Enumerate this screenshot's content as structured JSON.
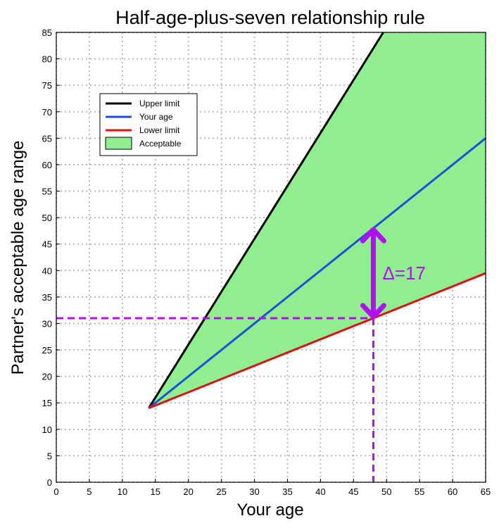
{
  "chart_data": {
    "type": "area",
    "title": "Half-age-plus-seven relationship rule",
    "xlabel": "Your age",
    "ylabel": "Partner's acceptable age range",
    "xlim": [
      0,
      65
    ],
    "ylim": [
      0,
      85
    ],
    "xticks": [
      0,
      5,
      10,
      15,
      20,
      25,
      30,
      35,
      40,
      45,
      50,
      55,
      60,
      65
    ],
    "yticks": [
      0,
      5,
      10,
      15,
      20,
      25,
      30,
      35,
      40,
      45,
      50,
      55,
      60,
      65,
      70,
      75,
      80,
      85
    ],
    "grid": true,
    "legend_position": "upper-left",
    "series": [
      {
        "name": "Upper limit",
        "color": "#000000",
        "x": [
          14,
          49.5
        ],
        "y": [
          14,
          85
        ]
      },
      {
        "name": "Your age",
        "color": "#1f4fd8",
        "x": [
          14,
          65
        ],
        "y": [
          14,
          65
        ]
      },
      {
        "name": "Lower limit",
        "color": "#e01010",
        "x": [
          14,
          65
        ],
        "y": [
          14,
          39.5
        ]
      }
    ],
    "area": {
      "name": "Acceptable",
      "color": "#90ee90"
    },
    "annotation": {
      "text": "Δ=17",
      "color": "#b010f0",
      "x": 48,
      "y_low": 31,
      "y_high": 48
    }
  }
}
